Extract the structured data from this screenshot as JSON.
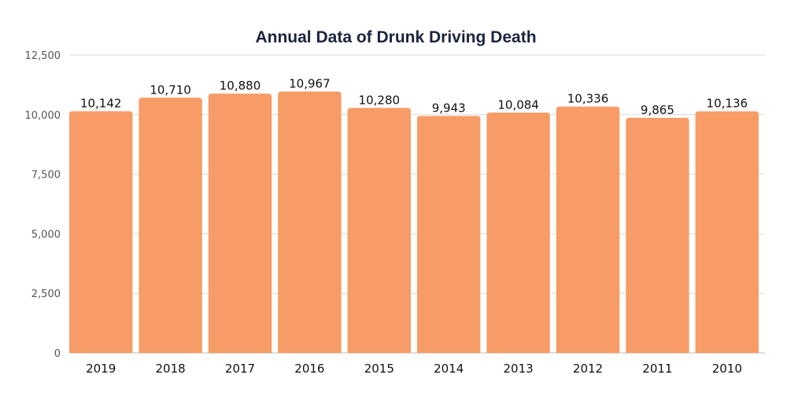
{
  "chart_data": {
    "type": "bar",
    "title": "Annual Data of Drunk Driving Death",
    "xlabel": "",
    "ylabel": "",
    "categories": [
      "2019",
      "2018",
      "2017",
      "2016",
      "2015",
      "2014",
      "2013",
      "2012",
      "2011",
      "2010"
    ],
    "values": [
      10142,
      10710,
      10880,
      10967,
      10280,
      9943,
      10084,
      10336,
      9865,
      10136
    ],
    "data_labels": [
      "10,142",
      "10,710",
      "10,880",
      "10,967",
      "10,280",
      "9,943",
      "10,084",
      "10,336",
      "9,865",
      "10,136"
    ],
    "ylim": [
      0,
      12500
    ],
    "yticks": [
      0,
      2500,
      5000,
      7500,
      10000,
      12500
    ],
    "ytick_labels": [
      "0",
      "2,500",
      "5,000",
      "7,500",
      "10,000",
      "12,500"
    ],
    "grid": true,
    "legend": "none",
    "colors": {
      "bar": "#f79c66",
      "title": "#1b2440",
      "grid": "#d9d9d9"
    }
  }
}
